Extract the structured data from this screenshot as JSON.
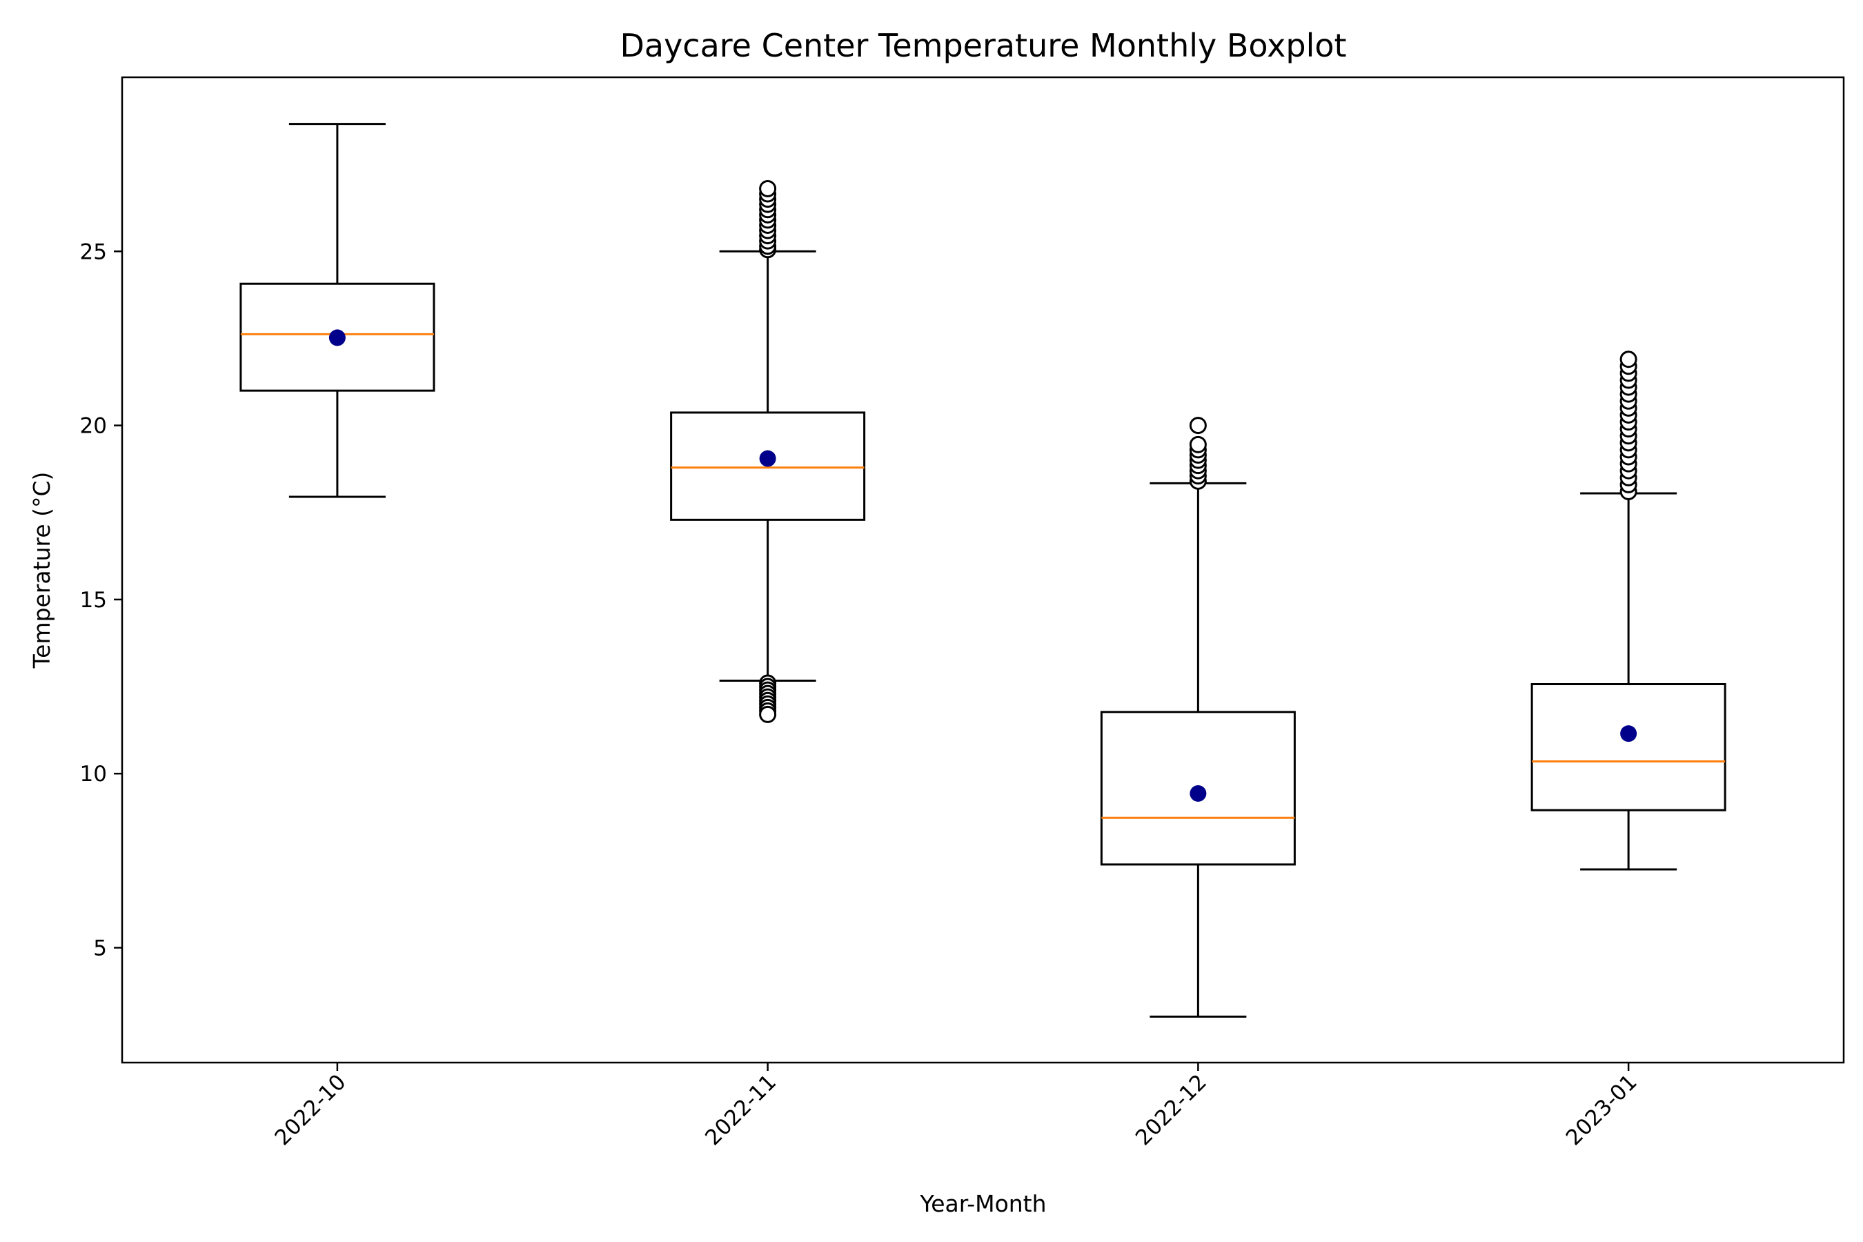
{
  "colors": {
    "box": "#000000",
    "median": "#ff7f0e",
    "mean": "#00008b",
    "background": "#ffffff"
  },
  "chart_data": {
    "type": "boxplot",
    "title": "Daycare Center Temperature Monthly Boxplot",
    "xlabel": "Year-Month",
    "ylabel": "Temperature (°C)",
    "ylim": [
      1.7,
      30.0
    ],
    "yticks": [
      5,
      10,
      15,
      20,
      25
    ],
    "grid": false,
    "categories": [
      "2022-10",
      "2022-11",
      "2022-12",
      "2023-01"
    ],
    "boxes": [
      {
        "category": "2022-10",
        "whisker_low": 17.95,
        "q1": 21.0,
        "median": 22.62,
        "q3": 24.07,
        "whisker_high": 28.66,
        "mean": 22.52,
        "fliers_low": [],
        "fliers_high": []
      },
      {
        "category": "2022-11",
        "whisker_low": 12.67,
        "q1": 17.29,
        "median": 18.79,
        "q3": 20.37,
        "whisker_high": 25.0,
        "mean": 19.05,
        "fliers_low": [
          12.6,
          12.5,
          12.4,
          12.3,
          12.2,
          12.1,
          12.0,
          11.9,
          11.8,
          11.7
        ],
        "fliers_high": [
          25.05,
          25.15,
          25.3,
          25.45,
          25.6,
          25.75,
          25.9,
          26.05,
          26.2,
          26.35,
          26.5,
          26.65,
          26.8
        ]
      },
      {
        "category": "2022-12",
        "whisker_low": 3.02,
        "q1": 7.39,
        "median": 8.73,
        "q3": 11.77,
        "whisker_high": 18.34,
        "mean": 9.43,
        "fliers_low": [],
        "fliers_high": [
          18.4,
          18.55,
          18.7,
          18.85,
          19.0,
          19.15,
          19.3,
          19.45,
          20.0
        ]
      },
      {
        "category": "2023-01",
        "whisker_low": 7.25,
        "q1": 8.95,
        "median": 10.35,
        "q3": 12.57,
        "whisker_high": 18.05,
        "mean": 11.15,
        "fliers_low": [],
        "fliers_high": [
          18.1,
          18.3,
          18.5,
          18.7,
          18.9,
          19.1,
          19.3,
          19.5,
          19.7,
          19.9,
          20.1,
          20.3,
          20.5,
          20.7,
          20.9,
          21.1,
          21.3,
          21.5,
          21.7,
          21.9
        ]
      }
    ]
  }
}
